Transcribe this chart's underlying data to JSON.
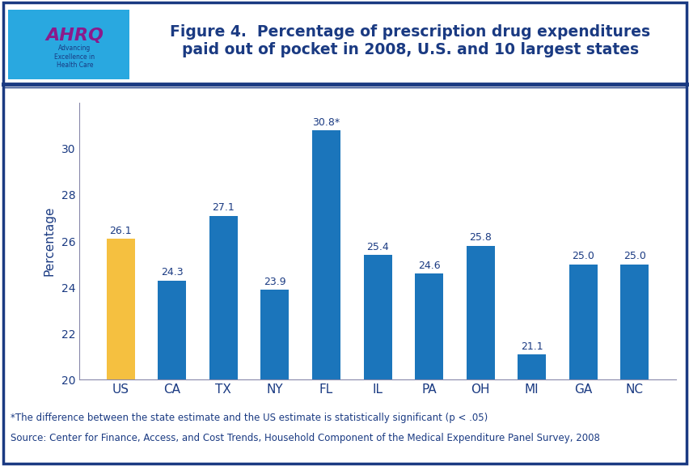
{
  "categories": [
    "US",
    "CA",
    "TX",
    "NY",
    "FL",
    "IL",
    "PA",
    "OH",
    "MI",
    "GA",
    "NC"
  ],
  "values": [
    26.1,
    24.3,
    27.1,
    23.9,
    30.8,
    25.4,
    24.6,
    25.8,
    21.1,
    25.0,
    25.0
  ],
  "bar_colors": [
    "#F5C040",
    "#1B75BB",
    "#1B75BB",
    "#1B75BB",
    "#1B75BB",
    "#1B75BB",
    "#1B75BB",
    "#1B75BB",
    "#1B75BB",
    "#1B75BB",
    "#1B75BB"
  ],
  "labels": [
    "26.1",
    "24.3",
    "27.1",
    "23.9",
    "30.8*",
    "25.4",
    "24.6",
    "25.8",
    "21.1",
    "25.0",
    "25.0"
  ],
  "title_line1": "Figure 4.  Percentage of prescription drug expenditures",
  "title_line2": "paid out of pocket in 2008, U.S. and 10 largest states",
  "ylabel": "Percentage",
  "ylim_min": 20,
  "ylim_max": 32,
  "yticks": [
    20,
    22,
    24,
    26,
    28,
    30
  ],
  "footnote1": "*The difference between the state estimate and the US estimate is statistically significant (p < .05)",
  "footnote2": "Source: Center for Finance, Access, and Cost Trends, Household Component of the Medical Expenditure Panel Survey, 2008",
  "title_color": "#1A3A82",
  "bar_label_color": "#1A3A82",
  "axis_color": "#8888AA",
  "background_color": "#FFFFFF",
  "outer_border_color": "#1A3A82",
  "header_bg_color": "#FFFFFF",
  "title_fontsize": 13.5,
  "label_fontsize": 9,
  "ylabel_fontsize": 11,
  "tick_fontsize": 10,
  "footnote_fontsize": 8.5,
  "bar_width": 0.55,
  "logo_bg_color": "#29A8E0",
  "logo_text_color": "#FFFFFF",
  "ahrq_text_color": "#8B0000"
}
